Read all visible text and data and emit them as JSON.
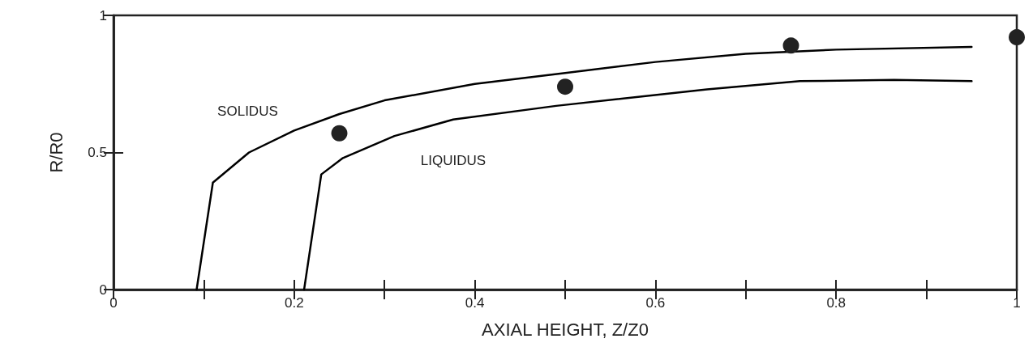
{
  "chart_data": {
    "type": "line",
    "xlabel": "AXIAL HEIGHT, Z/Z0",
    "ylabel": "R/R0",
    "xlim": [
      0,
      1
    ],
    "ylim": [
      0,
      1
    ],
    "xticks": [
      0,
      {
        "value": 0.1,
        "label": null
      },
      0.2,
      {
        "value": 0.3,
        "label": null
      },
      0.4,
      {
        "value": 0.5,
        "label": null
      },
      0.6,
      {
        "value": 0.7,
        "label": null
      },
      0.8,
      {
        "value": 0.9,
        "label": null
      },
      1
    ],
    "yticks": [
      0,
      0.5,
      1
    ],
    "grid": false,
    "line_style": "solid",
    "series": [
      {
        "color": "#000000",
        "x": [
          0.092,
          0.11,
          0.15,
          0.2,
          0.25,
          0.3,
          0.4,
          0.5,
          0.6,
          0.7,
          0.8,
          0.95
        ],
        "values": [
          0,
          0.39,
          0.5,
          0.58,
          0.64,
          0.69,
          0.75,
          0.79,
          0.83,
          0.86,
          0.875,
          0.885
        ]
      },
      {
        "color": "#000000",
        "x": [
          0.211,
          0.23,
          0.254,
          0.311,
          0.376,
          0.49,
          0.657,
          0.76,
          0.864,
          0.95
        ],
        "values": [
          0,
          0.42,
          0.48,
          0.56,
          0.62,
          0.67,
          0.73,
          0.76,
          0.765,
          0.76
        ]
      },
      {
        "type": "scatter",
        "marker": "circle",
        "color": "#222222",
        "x": [
          0.25,
          0.5,
          0.75,
          1
        ],
        "values": [
          0.57,
          0.74,
          0.89,
          0.92
        ]
      }
    ],
    "annotations": [
      "SOLIDUS",
      "LIQUIDUS"
    ]
  }
}
